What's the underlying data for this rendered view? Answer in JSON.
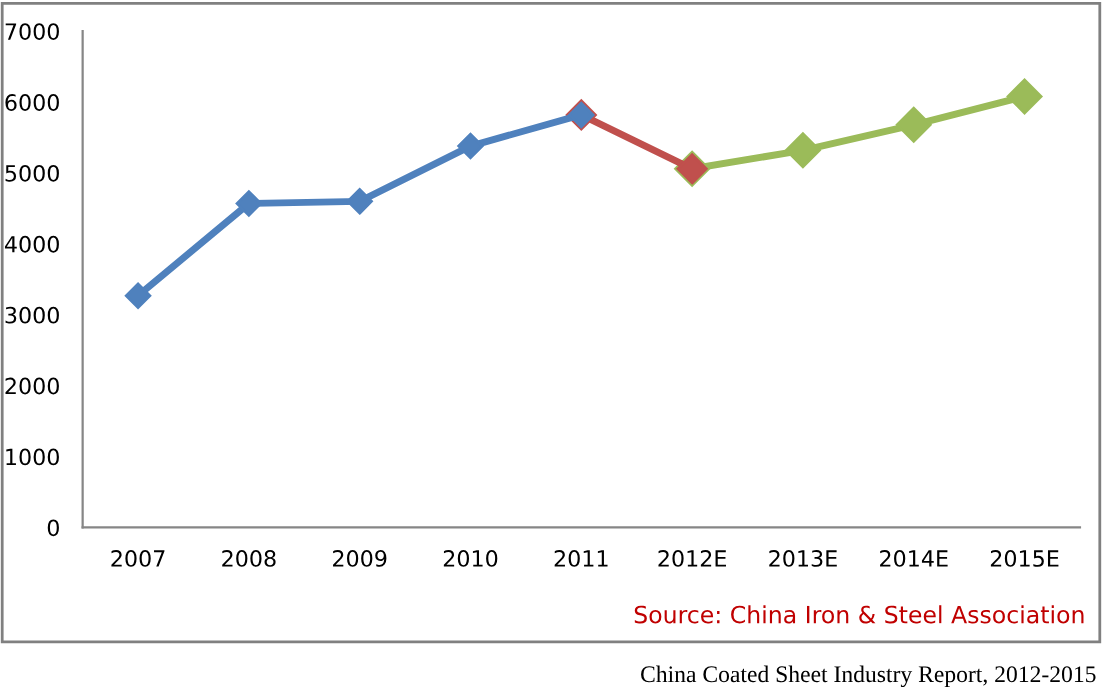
{
  "chart_data": {
    "type": "line",
    "categories": [
      "2007",
      "2008",
      "2009",
      "2010",
      "2011",
      "2012E",
      "2013E",
      "2014E",
      "2015E"
    ],
    "series": [
      {
        "color": "#9bbb59",
        "values": [
          null,
          null,
          null,
          null,
          null,
          5060,
          5320,
          5680,
          6080
        ]
      },
      {
        "color": "#c0504d",
        "values": [
          null,
          null,
          null,
          null,
          5820,
          5060,
          null,
          null,
          null
        ]
      },
      {
        "color": "#4f81bd",
        "values": [
          3270,
          4570,
          4600,
          5380,
          5820,
          null,
          null,
          null,
          null
        ]
      }
    ],
    "ylim": [
      0,
      7000
    ],
    "yticks": [
      0,
      1000,
      2000,
      3000,
      4000,
      5000,
      6000,
      7000
    ],
    "marker": "diamond",
    "line_style": "solid",
    "grid": false,
    "legend": false,
    "annotations": [
      "Source: China Iron & Steel Association",
      "China Coated Sheet Industry Report, 2012-2015"
    ]
  }
}
